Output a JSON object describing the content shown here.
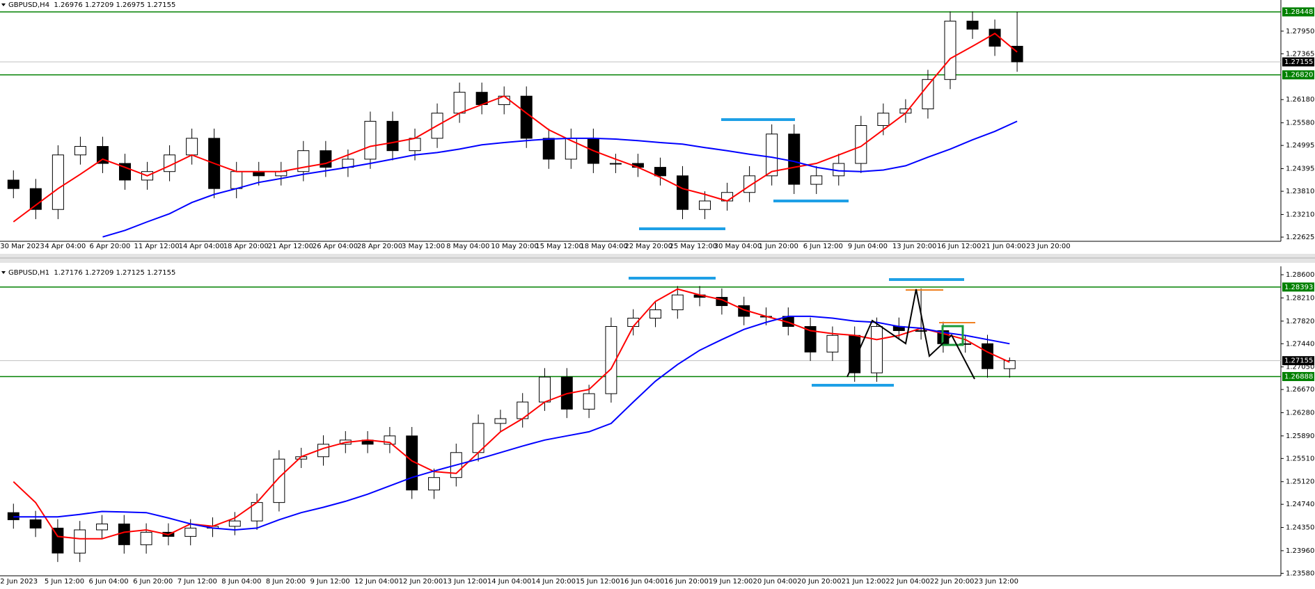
{
  "chart_data": [
    {
      "type": "candlestick",
      "title": "GBPUSD,H4  1.26976 1.27209 1.26975 1.27155",
      "categories": [
        "30 Mar 2023",
        null,
        "4 Apr 04:00",
        null,
        "6 Apr 20:00",
        null,
        "11 Apr 12:00",
        null,
        "14 Apr 04:00",
        null,
        "18 Apr 20:00",
        null,
        "21 Apr 12:00",
        null,
        "26 Apr 04:00",
        null,
        "28 Apr 20:00",
        null,
        "3 May 12:00",
        null,
        "8 May 04:00",
        null,
        "10 May 20:00",
        null,
        "15 May 12:00",
        null,
        "18 May 04:00",
        null,
        "22 May 20:00",
        null,
        "25 May 12:00",
        null,
        "30 May 04:00",
        null,
        "1 Jun 20:00",
        null,
        "6 Jun 12:00",
        null,
        "9 Jun 04:00",
        null,
        "13 Jun 20:00",
        null,
        "16 Jun 12:00",
        null,
        "21 Jun 04:00",
        null,
        "23 Jun 20:00"
      ],
      "open": [
        1.241,
        1.2388,
        1.2334,
        1.2475,
        1.2497,
        1.2453,
        1.241,
        1.2432,
        1.2475,
        1.2518,
        1.2388,
        1.2432,
        1.2421,
        1.2432,
        1.2486,
        1.2443,
        1.2464,
        1.2562,
        1.2486,
        1.2518,
        1.2583,
        1.2637,
        1.2605,
        1.2627,
        1.2518,
        1.2464,
        1.2518,
        1.2453,
        1.2453,
        1.2443,
        1.2421,
        1.2334,
        1.2356,
        1.2378,
        1.2421,
        1.2529,
        1.2399,
        1.2421,
        1.2453,
        1.2551,
        1.2583,
        1.2594,
        1.267,
        1.2821,
        1.28,
        1.2756,
        null
      ],
      "high": [
        1.2435,
        1.2413,
        1.25,
        1.2522,
        1.2522,
        1.2478,
        1.2457,
        1.25,
        1.2543,
        1.2543,
        1.2457,
        1.2457,
        1.2457,
        1.2511,
        1.2511,
        1.2489,
        1.2587,
        1.2587,
        1.2543,
        1.2608,
        1.2662,
        1.2662,
        1.2652,
        1.2652,
        1.2543,
        1.2543,
        1.2543,
        1.2478,
        1.2478,
        1.2468,
        1.2446,
        1.2381,
        1.2403,
        1.2446,
        1.2554,
        1.2554,
        1.2446,
        1.2478,
        1.2576,
        1.2608,
        1.2619,
        1.2695,
        1.2846,
        1.2846,
        1.2825,
        1.2845,
        null
      ],
      "low": [
        1.2363,
        1.2309,
        1.2309,
        1.245,
        1.2428,
        1.2385,
        1.2385,
        1.2407,
        1.245,
        1.2363,
        1.2363,
        1.2396,
        1.2396,
        1.2407,
        1.2418,
        1.2418,
        1.2439,
        1.2461,
        1.2461,
        1.2493,
        1.2558,
        1.258,
        1.258,
        1.2493,
        1.2439,
        1.2439,
        1.2428,
        1.2428,
        1.2418,
        1.2396,
        1.2309,
        1.2309,
        1.2331,
        1.2353,
        1.2396,
        1.2374,
        1.2374,
        1.2396,
        1.2428,
        1.2526,
        1.2558,
        1.2569,
        1.2645,
        1.2775,
        1.2731,
        1.269,
        null
      ],
      "close": [
        1.2388,
        1.2334,
        1.2475,
        1.2497,
        1.2453,
        1.241,
        1.2432,
        1.2475,
        1.2518,
        1.2388,
        1.2432,
        1.2421,
        1.2432,
        1.2486,
        1.2443,
        1.2464,
        1.2562,
        1.2486,
        1.2518,
        1.2583,
        1.2637,
        1.2605,
        1.2627,
        1.2518,
        1.2464,
        1.2518,
        1.2453,
        1.2453,
        1.2443,
        1.2421,
        1.2334,
        1.2356,
        1.2378,
        1.2421,
        1.2529,
        1.2399,
        1.2421,
        1.2453,
        1.2551,
        1.2583,
        1.2594,
        1.267,
        1.2821,
        1.28,
        1.2756,
        1.27155,
        null
      ],
      "candle_color": "#000000",
      "moving_averages": [
        {
          "color": "#ff0000",
          "values": [
            1.2302,
            1.2345,
            1.2388,
            1.2425,
            1.2464,
            1.2443,
            1.2421,
            1.2447,
            1.2475,
            1.2453,
            1.2432,
            1.2432,
            1.2432,
            1.2443,
            1.2453,
            1.2475,
            1.2497,
            1.2507,
            1.2518,
            1.2551,
            1.2583,
            1.2605,
            1.2627,
            1.2583,
            1.254,
            1.2512,
            1.2486,
            1.2464,
            1.2443,
            1.2417,
            1.2388,
            1.2373,
            1.2356,
            1.2395,
            1.2432,
            1.2443,
            1.2453,
            1.2475,
            1.2497,
            1.254,
            1.2583,
            1.2655,
            1.2724,
            1.2756,
            1.2789,
            1.2741,
            null
          ]
        },
        {
          "color": "#0000ff",
          "values": [
            null,
            null,
            null,
            null,
            1.2263,
            1.228,
            1.2302,
            1.2323,
            1.2352,
            1.2373,
            1.2388,
            1.2404,
            1.2414,
            1.2425,
            1.2434,
            1.2443,
            1.2453,
            1.2464,
            1.2475,
            1.2481,
            1.249,
            1.2501,
            1.2507,
            1.2512,
            1.2516,
            1.2518,
            1.2518,
            1.2516,
            1.2512,
            1.2507,
            1.2503,
            1.2494,
            1.2486,
            1.2477,
            1.2469,
            1.2458,
            1.2443,
            1.2434,
            1.2432,
            1.2436,
            1.2447,
            1.2469,
            1.249,
            1.2514,
            1.2536,
            1.2562,
            null
          ]
        }
      ],
      "ylim": [
        1.22517,
        1.28755
      ],
      "yticks": [
        {
          "value": 1.2795,
          "label": "1.27950"
        },
        1.27365,
        {
          "value": 1.2618,
          "label": "1.26180"
        },
        {
          "value": 1.2558,
          "label": "1.25580"
        },
        1.24995,
        1.24395,
        {
          "value": 1.2381,
          "label": "1.23810"
        },
        {
          "value": 1.2321,
          "label": "1.23210"
        },
        1.22625
      ],
      "grid": false,
      "levels": [
        1.28448,
        {
          "value": 1.2682,
          "label": "1.26820"
        }
      ],
      "level_color": "#008000",
      "current_price": 1.27155
    },
    {
      "type": "candlestick",
      "title": "GBPUSD,H1  1.27176 1.27209 1.27125 1.27155",
      "categories": [
        "2 Jun 2023",
        null,
        "5 Jun 12:00",
        null,
        "6 Jun 04:00",
        null,
        "6 Jun 20:00",
        null,
        "7 Jun 12:00",
        null,
        "8 Jun 04:00",
        null,
        "8 Jun 20:00",
        null,
        "9 Jun 12:00",
        null,
        "12 Jun 04:00",
        null,
        "12 Jun 20:00",
        null,
        "13 Jun 12:00",
        null,
        "14 Jun 04:00",
        null,
        "14 Jun 20:00",
        null,
        "15 Jun 12:00",
        null,
        "16 Jun 04:00",
        null,
        "16 Jun 20:00",
        null,
        "19 Jun 12:00",
        null,
        "20 Jun 04:00",
        null,
        "20 Jun 20:00",
        null,
        "21 Jun 12:00",
        null,
        "22 Jun 04:00",
        null,
        "22 Jun 20:00",
        null,
        "23 Jun 12:00",
        null
      ],
      "open": [
        1.246,
        1.2448,
        1.2434,
        1.2392,
        1.2431,
        1.2441,
        1.2406,
        1.2427,
        1.242,
        1.2434,
        1.2437,
        1.2446,
        1.2477,
        1.255,
        1.2554,
        1.2575,
        1.2582,
        1.2575,
        1.2589,
        1.2498,
        1.2519,
        1.2561,
        1.261,
        1.2618,
        1.2646,
        1.2688,
        1.2634,
        1.266,
        1.2773,
        1.2787,
        1.2801,
        1.2826,
        1.2822,
        1.2808,
        1.279,
        1.279,
        1.2773,
        1.273,
        1.2758,
        1.2695,
        1.2773,
        1.2766,
        1.2766,
        1.2744,
        1.2744,
        1.2702
      ],
      "high": [
        1.2475,
        1.2463,
        1.2449,
        1.2446,
        1.2456,
        1.2456,
        1.2442,
        1.2442,
        1.2449,
        1.2452,
        1.2461,
        1.2492,
        1.2565,
        1.2569,
        1.259,
        1.2597,
        1.2597,
        1.2604,
        1.2604,
        1.2534,
        1.2576,
        1.2625,
        1.2633,
        1.2661,
        1.2703,
        1.2703,
        1.2675,
        1.2788,
        1.2802,
        1.2816,
        1.2841,
        1.2841,
        1.2837,
        1.2823,
        1.2805,
        1.2805,
        1.2788,
        1.2773,
        1.2773,
        1.2788,
        1.2788,
        1.2837,
        1.2781,
        1.2759,
        1.2759,
        1.27209
      ],
      "low": [
        1.2433,
        1.2419,
        1.2377,
        1.2377,
        1.2416,
        1.2391,
        1.2391,
        1.2405,
        1.2405,
        1.2419,
        1.2422,
        1.2431,
        1.2462,
        1.2535,
        1.2539,
        1.256,
        1.256,
        1.256,
        1.2483,
        1.2483,
        1.2504,
        1.2546,
        1.2595,
        1.2603,
        1.2631,
        1.2619,
        1.2619,
        1.2645,
        1.2758,
        1.2772,
        1.2786,
        1.2807,
        1.2793,
        1.2775,
        1.2775,
        1.2758,
        1.2715,
        1.2715,
        1.268,
        1.268,
        1.2751,
        1.2751,
        1.2729,
        1.2729,
        1.2687,
        1.2687
      ],
      "close": [
        1.2448,
        1.2434,
        1.2392,
        1.2431,
        1.2441,
        1.2406,
        1.2427,
        1.242,
        1.2434,
        1.2437,
        1.2446,
        1.2477,
        1.255,
        1.2554,
        1.2575,
        1.2582,
        1.2575,
        1.2589,
        1.2498,
        1.2519,
        1.2561,
        1.261,
        1.2618,
        1.2646,
        1.2688,
        1.2634,
        1.266,
        1.2773,
        1.2787,
        1.2801,
        1.2826,
        1.2822,
        1.2808,
        1.279,
        1.279,
        1.2773,
        1.273,
        1.2758,
        1.2695,
        1.2773,
        1.2766,
        1.2766,
        1.2744,
        1.2744,
        1.2702,
        1.27155
      ],
      "candle_color": "#000000",
      "moving_averages": [
        {
          "color": "#ff0000",
          "values": [
            1.2512,
            1.2477,
            1.242,
            1.2416,
            1.2416,
            1.2427,
            1.2431,
            1.2423,
            1.2441,
            1.2437,
            1.2451,
            1.2477,
            1.2519,
            1.2554,
            1.2568,
            1.2578,
            1.2582,
            1.2578,
            1.2547,
            1.2529,
            1.2526,
            1.2561,
            1.2596,
            1.2618,
            1.2646,
            1.266,
            1.2667,
            1.2702,
            1.2773,
            1.2815,
            1.2836,
            1.2826,
            1.2818,
            1.2801,
            1.279,
            1.278,
            1.2766,
            1.2761,
            1.2758,
            1.2751,
            1.2758,
            1.277,
            1.2761,
            1.2751,
            1.273,
            1.2713
          ]
        },
        {
          "color": "#0000ff",
          "values": [
            1.2453,
            1.2453,
            1.2453,
            1.2457,
            1.2462,
            1.2461,
            1.246,
            1.2451,
            1.2441,
            1.2434,
            1.2431,
            1.2434,
            1.2448,
            1.246,
            1.2469,
            1.2479,
            1.2491,
            1.2505,
            1.2519,
            1.253,
            1.254,
            1.255,
            1.2561,
            1.2572,
            1.2582,
            1.2589,
            1.2596,
            1.261,
            1.2646,
            1.2681,
            1.2709,
            1.2733,
            1.2751,
            1.2768,
            1.278,
            1.279,
            1.279,
            1.2787,
            1.2782,
            1.278,
            1.2773,
            1.277,
            1.2763,
            1.2758,
            1.2751,
            1.2744
          ]
        }
      ],
      "ylim": [
        1.23538,
        1.28741
      ],
      "yticks": [
        {
          "value": 1.286,
          "label": "1.28600"
        },
        {
          "value": 1.2821,
          "label": "1.28210"
        },
        {
          "value": 1.2782,
          "label": "1.27820"
        },
        {
          "value": 1.2744,
          "label": "1.27440"
        },
        {
          "value": 1.2705,
          "label": "1.27050"
        },
        {
          "value": 1.2667,
          "label": "1.26670"
        },
        {
          "value": 1.2628,
          "label": "1.26280"
        },
        {
          "value": 1.2589,
          "label": "1.25890"
        },
        {
          "value": 1.2551,
          "label": "1.25510"
        },
        {
          "value": 1.2512,
          "label": "1.25120"
        },
        {
          "value": 1.2474,
          "label": "1.24740"
        },
        {
          "value": 1.2435,
          "label": "1.24350"
        },
        {
          "value": 1.2396,
          "label": "1.23960"
        },
        {
          "value": 1.2358,
          "label": "1.23580"
        }
      ],
      "grid": false,
      "levels": [
        1.28393,
        1.26888
      ],
      "level_color": "#008000",
      "current_price": 1.27155
    }
  ]
}
